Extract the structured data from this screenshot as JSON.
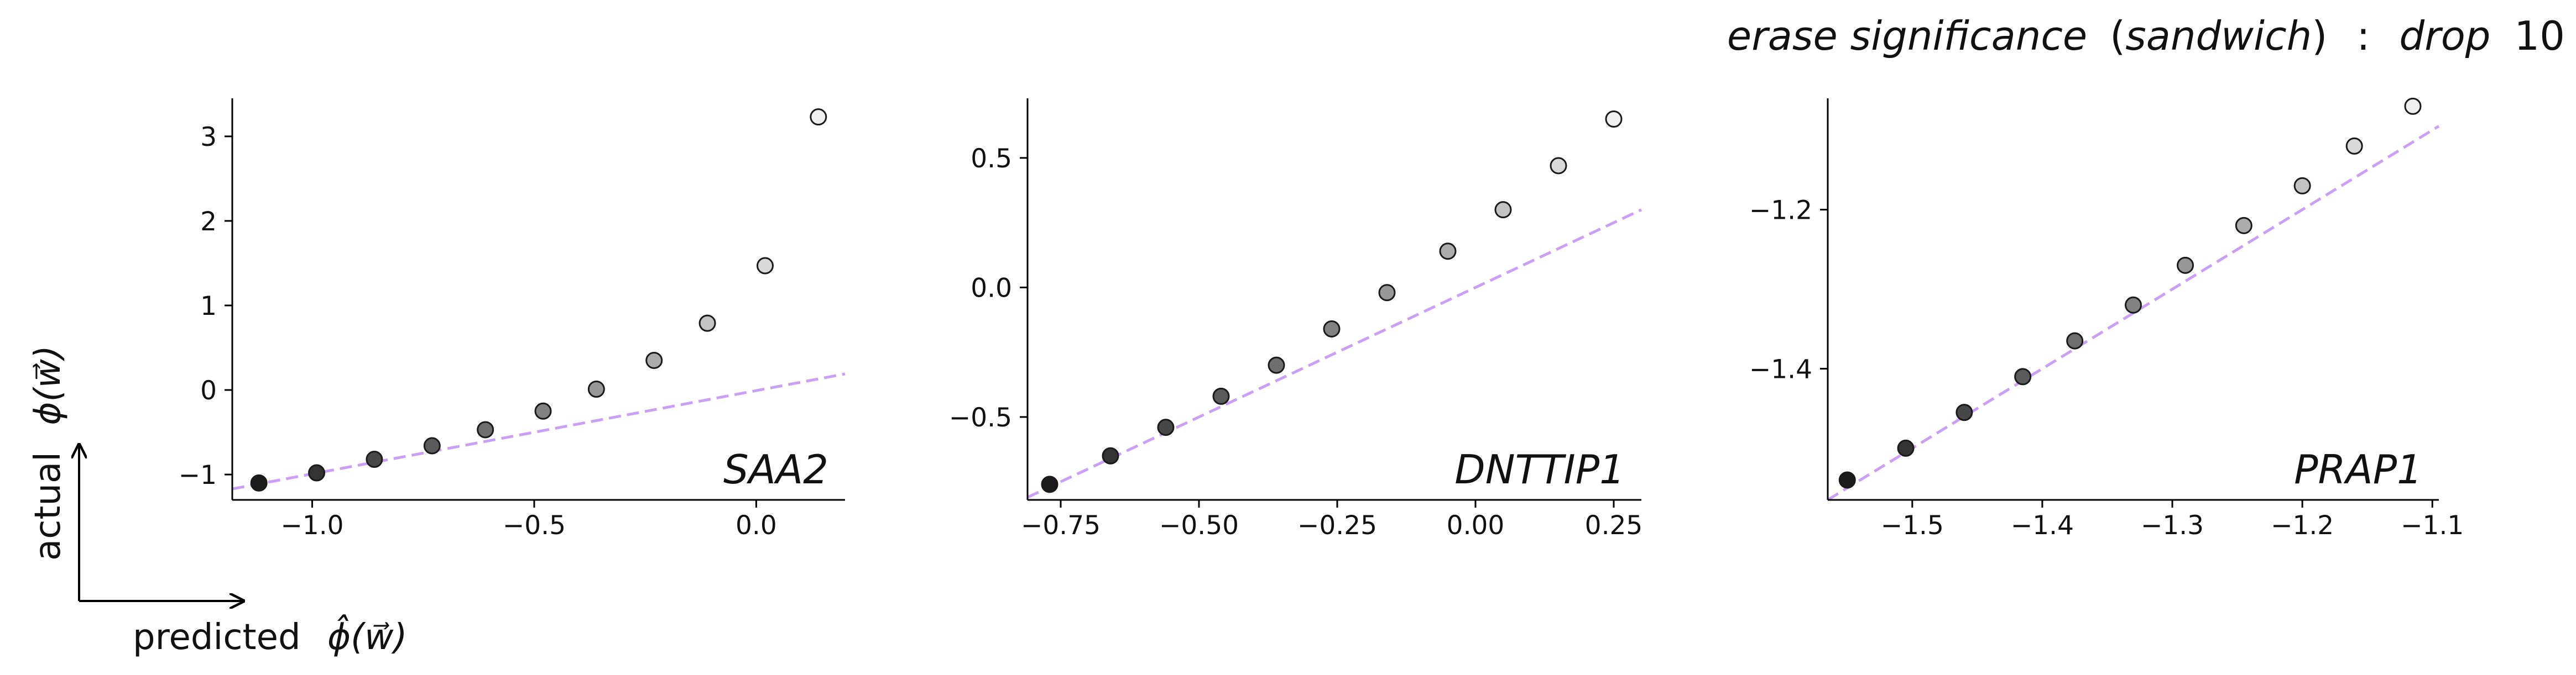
{
  "title": {
    "prefix": "erase significance",
    "paren_text": "sandwich",
    "colon": ":",
    "drop_word": "drop",
    "drop_value": "10"
  },
  "axis_labels": {
    "y_text": "actual",
    "y_symbol": "ϕ(w⃗)",
    "x_text": "predicted",
    "x_symbol": "ϕ̂(w⃗)"
  },
  "colors": {
    "reference_line": "#c9a0f5",
    "marker_edge": "#1a1a1a",
    "axis": "#000000"
  },
  "chart_data": [
    {
      "type": "scatter",
      "gene": "SAA2",
      "xlim": [
        -1.18,
        0.2
      ],
      "ylim": [
        -1.3,
        3.45
      ],
      "xticks": [
        -1.0,
        -0.5,
        0.0
      ],
      "xtick_labels": [
        "−1.0",
        "−0.5",
        "0.0"
      ],
      "yticks": [
        -1,
        0,
        1,
        2,
        3
      ],
      "ytick_labels": [
        "−1",
        "0",
        "1",
        "2",
        "3"
      ],
      "points": [
        {
          "x": -1.12,
          "y": -1.1,
          "shade": "#1c1c1c"
        },
        {
          "x": -0.99,
          "y": -0.98,
          "shade": "#333333"
        },
        {
          "x": -0.86,
          "y": -0.82,
          "shade": "#474747"
        },
        {
          "x": -0.73,
          "y": -0.66,
          "shade": "#5a5a5a"
        },
        {
          "x": -0.61,
          "y": -0.47,
          "shade": "#6e6e6e"
        },
        {
          "x": -0.48,
          "y": -0.25,
          "shade": "#828282"
        },
        {
          "x": -0.36,
          "y": 0.01,
          "shade": "#979797"
        },
        {
          "x": -0.23,
          "y": 0.35,
          "shade": "#acacac"
        },
        {
          "x": -0.11,
          "y": 0.79,
          "shade": "#c3c3c3"
        },
        {
          "x": 0.02,
          "y": 1.47,
          "shade": "#d9d9d9"
        },
        {
          "x": 0.14,
          "y": 3.23,
          "shade": "#efefef"
        }
      ],
      "reference_line": {
        "x": [
          -1.18,
          0.2
        ],
        "y": [
          -1.17,
          0.19
        ]
      }
    },
    {
      "type": "scatter",
      "gene": "DNTTIP1",
      "xlim": [
        -0.81,
        0.3
      ],
      "ylim": [
        -0.82,
        0.73
      ],
      "xticks": [
        -0.75,
        -0.5,
        -0.25,
        0.0,
        0.25
      ],
      "xtick_labels": [
        "−0.75",
        "−0.50",
        "−0.25",
        "0.00",
        "0.25"
      ],
      "yticks": [
        -0.5,
        0.0,
        0.5
      ],
      "ytick_labels": [
        "−0.5",
        "0.0",
        "0.5"
      ],
      "points": [
        {
          "x": -0.77,
          "y": -0.76,
          "shade": "#1c1c1c"
        },
        {
          "x": -0.66,
          "y": -0.65,
          "shade": "#333333"
        },
        {
          "x": -0.56,
          "y": -0.54,
          "shade": "#474747"
        },
        {
          "x": -0.46,
          "y": -0.42,
          "shade": "#5a5a5a"
        },
        {
          "x": -0.36,
          "y": -0.3,
          "shade": "#6e6e6e"
        },
        {
          "x": -0.26,
          "y": -0.16,
          "shade": "#828282"
        },
        {
          "x": -0.16,
          "y": -0.02,
          "shade": "#979797"
        },
        {
          "x": -0.05,
          "y": 0.14,
          "shade": "#acacac"
        },
        {
          "x": 0.05,
          "y": 0.3,
          "shade": "#c3c3c3"
        },
        {
          "x": 0.15,
          "y": 0.47,
          "shade": "#d9d9d9"
        },
        {
          "x": 0.25,
          "y": 0.65,
          "shade": "#efefef"
        }
      ],
      "reference_line": {
        "x": [
          -0.81,
          0.3
        ],
        "y": [
          -0.81,
          0.3
        ]
      }
    },
    {
      "type": "scatter",
      "gene": "PRAP1",
      "xlim": [
        -1.565,
        -1.095
      ],
      "ylim": [
        -1.565,
        -1.06
      ],
      "xticks": [
        -1.5,
        -1.4,
        -1.3,
        -1.2,
        -1.1
      ],
      "xtick_labels": [
        "−1.5",
        "−1.4",
        "−1.3",
        "−1.2",
        "−1.1"
      ],
      "yticks": [
        -1.4,
        -1.2
      ],
      "ytick_labels": [
        "−1.4",
        "−1.2"
      ],
      "points": [
        {
          "x": -1.55,
          "y": -1.54,
          "shade": "#1c1c1c"
        },
        {
          "x": -1.505,
          "y": -1.5,
          "shade": "#333333"
        },
        {
          "x": -1.46,
          "y": -1.455,
          "shade": "#474747"
        },
        {
          "x": -1.415,
          "y": -1.41,
          "shade": "#5a5a5a"
        },
        {
          "x": -1.375,
          "y": -1.365,
          "shade": "#6e6e6e"
        },
        {
          "x": -1.33,
          "y": -1.32,
          "shade": "#828282"
        },
        {
          "x": -1.29,
          "y": -1.27,
          "shade": "#979797"
        },
        {
          "x": -1.245,
          "y": -1.22,
          "shade": "#acacac"
        },
        {
          "x": -1.2,
          "y": -1.17,
          "shade": "#c3c3c3"
        },
        {
          "x": -1.16,
          "y": -1.12,
          "shade": "#d9d9d9"
        },
        {
          "x": -1.115,
          "y": -1.07,
          "shade": "#efefef"
        }
      ],
      "reference_line": {
        "x": [
          -1.565,
          -1.095
        ],
        "y": [
          -1.565,
          -1.095
        ]
      }
    }
  ]
}
